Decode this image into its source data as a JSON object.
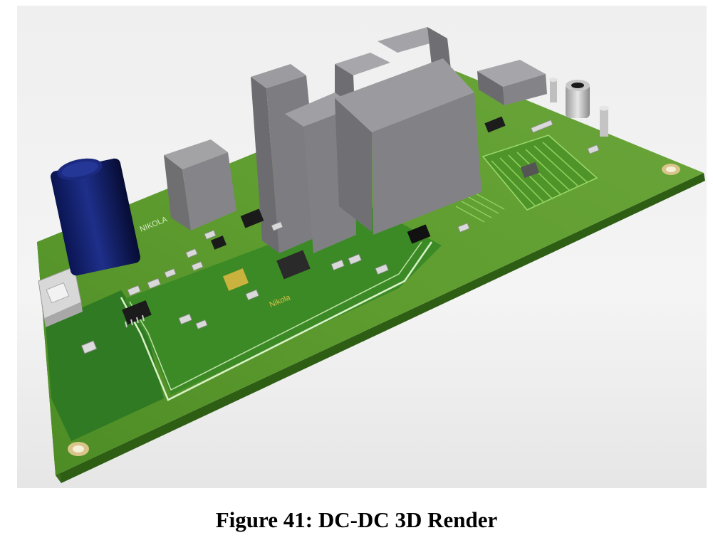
{
  "figure": {
    "caption": "Figure 41: DC-DC 3D Render"
  },
  "board": {
    "silkscreen_text": [
      "NIKOLA",
      "Nikola"
    ],
    "colors": {
      "board_top": "#5c9a2e",
      "board_edge": "#2e5e14",
      "copper_pour": "#2f7a22",
      "gray_components": "#7f7f82",
      "electrolytic_cap": "#0b1657",
      "trace_white": "#d9f2c8"
    }
  }
}
